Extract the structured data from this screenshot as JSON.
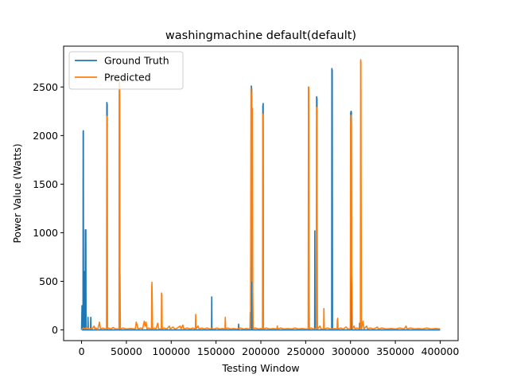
{
  "chart_data": {
    "type": "line",
    "title": "washingmachine default(default)",
    "xlabel": "Testing Window",
    "ylabel": "Power Value (Watts)",
    "xlim": [
      -20000,
      420000
    ],
    "ylim": [
      -110,
      2920
    ],
    "x_ticks": [
      0,
      50000,
      100000,
      150000,
      200000,
      250000,
      300000,
      350000,
      400000
    ],
    "y_ticks": [
      0,
      500,
      1000,
      1500,
      2000,
      2500
    ],
    "grid": false,
    "legend_position": "top-left",
    "series": [
      {
        "name": "Ground Truth",
        "color": "#1f77b4",
        "points": [
          [
            0,
            0
          ],
          [
            500,
            250
          ],
          [
            1000,
            0
          ],
          [
            1600,
            0
          ],
          [
            1800,
            2040
          ],
          [
            2000,
            2050
          ],
          [
            2200,
            0
          ],
          [
            3000,
            0
          ],
          [
            3200,
            600
          ],
          [
            3400,
            0
          ],
          [
            4000,
            0
          ],
          [
            4200,
            1030
          ],
          [
            4400,
            980
          ],
          [
            4800,
            1030
          ],
          [
            5000,
            0
          ],
          [
            7000,
            0
          ],
          [
            7200,
            130
          ],
          [
            7600,
            0
          ],
          [
            10000,
            0
          ],
          [
            10300,
            130
          ],
          [
            10600,
            0
          ],
          [
            28000,
            0
          ],
          [
            28200,
            2340
          ],
          [
            28600,
            2320
          ],
          [
            28800,
            0
          ],
          [
            42000,
            0
          ],
          [
            42200,
            2540
          ],
          [
            42500,
            2500
          ],
          [
            42700,
            0
          ],
          [
            145000,
            0
          ],
          [
            145200,
            340
          ],
          [
            145400,
            0
          ],
          [
            175000,
            0
          ],
          [
            175200,
            60
          ],
          [
            175400,
            0
          ],
          [
            188000,
            0
          ],
          [
            188200,
            180
          ],
          [
            188400,
            0
          ],
          [
            189000,
            0
          ],
          [
            189300,
            2510
          ],
          [
            189800,
            2480
          ],
          [
            190100,
            0
          ],
          [
            202000,
            0
          ],
          [
            202200,
            2300
          ],
          [
            202600,
            2330
          ],
          [
            202900,
            0
          ],
          [
            253000,
            0
          ],
          [
            253200,
            2500
          ],
          [
            253500,
            0
          ],
          [
            260000,
            0
          ],
          [
            260200,
            1020
          ],
          [
            260400,
            0
          ],
          [
            262000,
            0
          ],
          [
            262200,
            2400
          ],
          [
            262600,
            2380
          ],
          [
            262900,
            0
          ],
          [
            279000,
            0
          ],
          [
            279200,
            2690
          ],
          [
            279600,
            2670
          ],
          [
            279900,
            0
          ],
          [
            300000,
            0
          ],
          [
            300200,
            2230
          ],
          [
            300600,
            2250
          ],
          [
            301000,
            2240
          ],
          [
            301300,
            0
          ],
          [
            310000,
            0
          ],
          [
            310200,
            70
          ],
          [
            310400,
            0
          ],
          [
            400000,
            0
          ]
        ]
      },
      {
        "name": "Predicted",
        "color": "#ff7f0e",
        "points": [
          [
            0,
            5
          ],
          [
            2000,
            20
          ],
          [
            4000,
            10
          ],
          [
            6000,
            30
          ],
          [
            8000,
            10
          ],
          [
            12000,
            15
          ],
          [
            14000,
            40
          ],
          [
            15000,
            10
          ],
          [
            16000,
            20
          ],
          [
            18000,
            5
          ],
          [
            20000,
            80
          ],
          [
            21000,
            10
          ],
          [
            24000,
            20
          ],
          [
            26000,
            10
          ],
          [
            28000,
            10
          ],
          [
            28200,
            2200
          ],
          [
            28600,
            2190
          ],
          [
            28800,
            10
          ],
          [
            30000,
            20
          ],
          [
            33000,
            10
          ],
          [
            35000,
            25
          ],
          [
            38000,
            10
          ],
          [
            41800,
            10
          ],
          [
            42000,
            2380
          ],
          [
            42300,
            2550
          ],
          [
            42600,
            600
          ],
          [
            42900,
            560
          ],
          [
            43300,
            10
          ],
          [
            46000,
            20
          ],
          [
            50000,
            10
          ],
          [
            55000,
            15
          ],
          [
            60000,
            10
          ],
          [
            61000,
            80
          ],
          [
            62000,
            50
          ],
          [
            63000,
            10
          ],
          [
            66000,
            20
          ],
          [
            68000,
            10
          ],
          [
            70000,
            90
          ],
          [
            71000,
            40
          ],
          [
            72000,
            80
          ],
          [
            73000,
            10
          ],
          [
            75000,
            20
          ],
          [
            77000,
            10
          ],
          [
            78000,
            10
          ],
          [
            78200,
            400
          ],
          [
            78500,
            490
          ],
          [
            78800,
            300
          ],
          [
            79200,
            10
          ],
          [
            81000,
            20
          ],
          [
            83000,
            10
          ],
          [
            85000,
            70
          ],
          [
            86000,
            10
          ],
          [
            89000,
            10
          ],
          [
            89200,
            380
          ],
          [
            89600,
            360
          ],
          [
            89900,
            10
          ],
          [
            92000,
            20
          ],
          [
            95000,
            10
          ],
          [
            98000,
            40
          ],
          [
            99000,
            10
          ],
          [
            102000,
            30
          ],
          [
            104000,
            10
          ],
          [
            106000,
            15
          ],
          [
            110000,
            40
          ],
          [
            111000,
            10
          ],
          [
            113000,
            50
          ],
          [
            114000,
            10
          ],
          [
            118000,
            20
          ],
          [
            121000,
            10
          ],
          [
            124000,
            20
          ],
          [
            127000,
            10
          ],
          [
            127300,
            160
          ],
          [
            127700,
            10
          ],
          [
            130000,
            40
          ],
          [
            131000,
            10
          ],
          [
            134000,
            20
          ],
          [
            137000,
            10
          ],
          [
            140000,
            20
          ],
          [
            143000,
            10
          ],
          [
            145000,
            15
          ],
          [
            148000,
            10
          ],
          [
            151000,
            20
          ],
          [
            154000,
            10
          ],
          [
            157000,
            15
          ],
          [
            160000,
            10
          ],
          [
            160300,
            130
          ],
          [
            160700,
            10
          ],
          [
            163000,
            20
          ],
          [
            166000,
            10
          ],
          [
            170000,
            15
          ],
          [
            173000,
            10
          ],
          [
            177000,
            20
          ],
          [
            181000,
            10
          ],
          [
            184000,
            15
          ],
          [
            187000,
            10
          ],
          [
            188500,
            10
          ],
          [
            189000,
            2490
          ],
          [
            189500,
            2420
          ],
          [
            189900,
            2280
          ],
          [
            190300,
            500
          ],
          [
            190700,
            2280
          ],
          [
            191000,
            400
          ],
          [
            191400,
            10
          ],
          [
            194000,
            20
          ],
          [
            197000,
            10
          ],
          [
            200000,
            15
          ],
          [
            201800,
            10
          ],
          [
            202100,
            2220
          ],
          [
            202500,
            2200
          ],
          [
            202800,
            10
          ],
          [
            206000,
            20
          ],
          [
            210000,
            10
          ],
          [
            214000,
            15
          ],
          [
            218000,
            10
          ],
          [
            218300,
            40
          ],
          [
            218700,
            10
          ],
          [
            222000,
            20
          ],
          [
            226000,
            10
          ],
          [
            230000,
            15
          ],
          [
            234000,
            10
          ],
          [
            238000,
            20
          ],
          [
            242000,
            10
          ],
          [
            246000,
            15
          ],
          [
            250000,
            10
          ],
          [
            252800,
            10
          ],
          [
            253100,
            2500
          ],
          [
            253500,
            2490
          ],
          [
            253800,
            350
          ],
          [
            254100,
            10
          ],
          [
            256000,
            20
          ],
          [
            259000,
            10
          ],
          [
            262000,
            10
          ],
          [
            262300,
            2290
          ],
          [
            262600,
            2270
          ],
          [
            262900,
            150
          ],
          [
            263200,
            10
          ],
          [
            266000,
            40
          ],
          [
            267000,
            10
          ],
          [
            270000,
            10
          ],
          [
            270300,
            220
          ],
          [
            270700,
            10
          ],
          [
            274000,
            20
          ],
          [
            278000,
            10
          ],
          [
            282000,
            15
          ],
          [
            285000,
            10
          ],
          [
            285300,
            100
          ],
          [
            285700,
            120
          ],
          [
            286100,
            10
          ],
          [
            289000,
            20
          ],
          [
            292000,
            10
          ],
          [
            295000,
            30
          ],
          [
            297000,
            10
          ],
          [
            299800,
            10
          ],
          [
            300100,
            2100
          ],
          [
            300500,
            2210
          ],
          [
            300900,
            2200
          ],
          [
            301300,
            580
          ],
          [
            301700,
            450
          ],
          [
            302100,
            10
          ],
          [
            304000,
            40
          ],
          [
            305000,
            10
          ],
          [
            307000,
            20
          ],
          [
            311000,
            10
          ],
          [
            311300,
            2780
          ],
          [
            311600,
            2760
          ],
          [
            311900,
            1150
          ],
          [
            312200,
            10
          ],
          [
            314000,
            90
          ],
          [
            315000,
            10
          ],
          [
            318000,
            40
          ],
          [
            319000,
            10
          ],
          [
            322000,
            20
          ],
          [
            326000,
            10
          ],
          [
            330000,
            30
          ],
          [
            331000,
            10
          ],
          [
            335000,
            20
          ],
          [
            340000,
            10
          ],
          [
            345000,
            15
          ],
          [
            350000,
            10
          ],
          [
            355000,
            20
          ],
          [
            360000,
            10
          ],
          [
            362000,
            40
          ],
          [
            363000,
            10
          ],
          [
            367000,
            20
          ],
          [
            372000,
            10
          ],
          [
            376000,
            15
          ],
          [
            380000,
            10
          ],
          [
            385000,
            20
          ],
          [
            390000,
            10
          ],
          [
            395000,
            15
          ],
          [
            400000,
            10
          ]
        ]
      }
    ]
  }
}
